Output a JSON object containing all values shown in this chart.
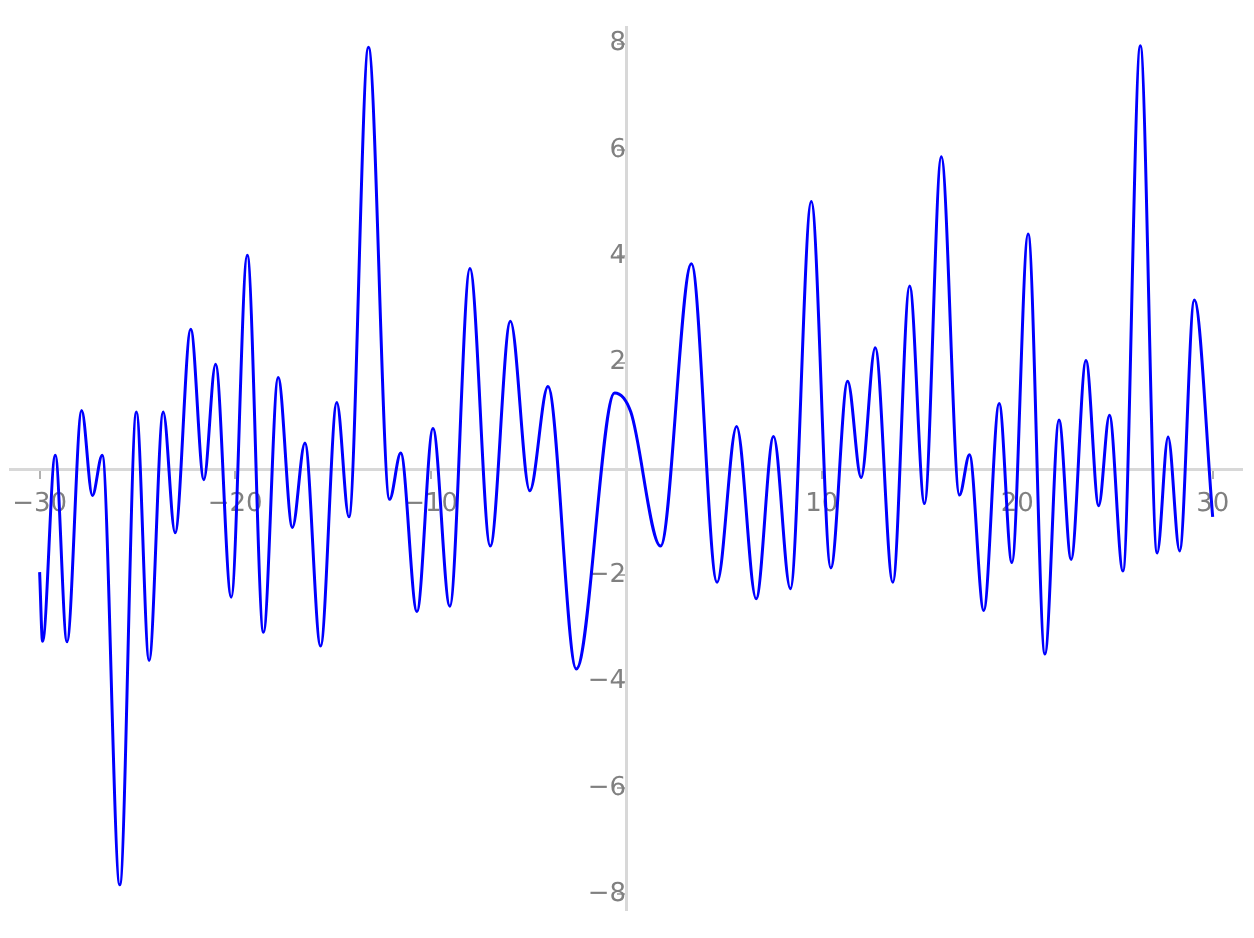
{
  "chart_data": {
    "type": "line",
    "x": [
      -30,
      -29.85,
      -29.2,
      -28.6,
      -27.85,
      -27.3,
      -26.8,
      -25.9,
      -25.05,
      -24.4,
      -23.68,
      -23.07,
      -22.27,
      -21.6,
      -21.0,
      -20.2,
      -19.38,
      -18.55,
      -17.8,
      -17.07,
      -16.43,
      -15.63,
      -14.8,
      -14.18,
      -13.18,
      -12.1,
      -11.53,
      -10.7,
      -9.88,
      -9.02,
      -7.99,
      -6.95,
      -5.92,
      -4.93,
      -4.0,
      -2.55,
      -0.59,
      0.24,
      1.76,
      3.34,
      4.65,
      5.65,
      6.65,
      7.54,
      8.4,
      9.47,
      10.47,
      11.33,
      12.02,
      12.74,
      13.64,
      14.5,
      15.26,
      16.12,
      17.05,
      17.56,
      18.29,
      19.08,
      19.73,
      20.56,
      21.42,
      22.14,
      22.76,
      23.52,
      24.17,
      24.72,
      25.41,
      26.3,
      27.16,
      27.72,
      28.31,
      29.06,
      30
    ],
    "values": [
      -1.94,
      -3.24,
      0.26,
      -3.25,
      1.1,
      -0.5,
      0.26,
      -7.82,
      1.07,
      -3.6,
      1.07,
      -1.2,
      2.63,
      -0.2,
      1.97,
      -2.41,
      4.02,
      -3.07,
      1.72,
      -1.1,
      0.49,
      -3.33,
      1.25,
      -0.9,
      7.93,
      -0.57,
      0.3,
      -2.68,
      0.76,
      -2.58,
      3.77,
      -1.45,
      2.78,
      -0.41,
      1.55,
      -3.76,
      1.43,
      1.07,
      -1.45,
      3.86,
      -2.13,
      0.8,
      -2.44,
      0.61,
      -2.25,
      5.03,
      -1.86,
      1.65,
      -0.16,
      2.28,
      -2.13,
      3.44,
      -0.65,
      5.87,
      -0.49,
      0.27,
      -2.66,
      1.23,
      -1.76,
      4.42,
      -3.48,
      0.92,
      -1.7,
      2.04,
      -0.69,
      1.01,
      -1.92,
      7.96,
      -1.58,
      0.6,
      -1.54,
      3.18,
      -0.9
    ],
    "color": "#0000ff",
    "xlim": [
      -31.5,
      31.5
    ],
    "ylim": [
      -8.3,
      8.3
    ],
    "xticks": [
      -30,
      -20,
      -10,
      10,
      20,
      30
    ],
    "yticks": [
      -8,
      -6,
      -4,
      -2,
      {
        "value": 0,
        "label": null
      },
      2,
      4,
      6,
      8
    ]
  }
}
